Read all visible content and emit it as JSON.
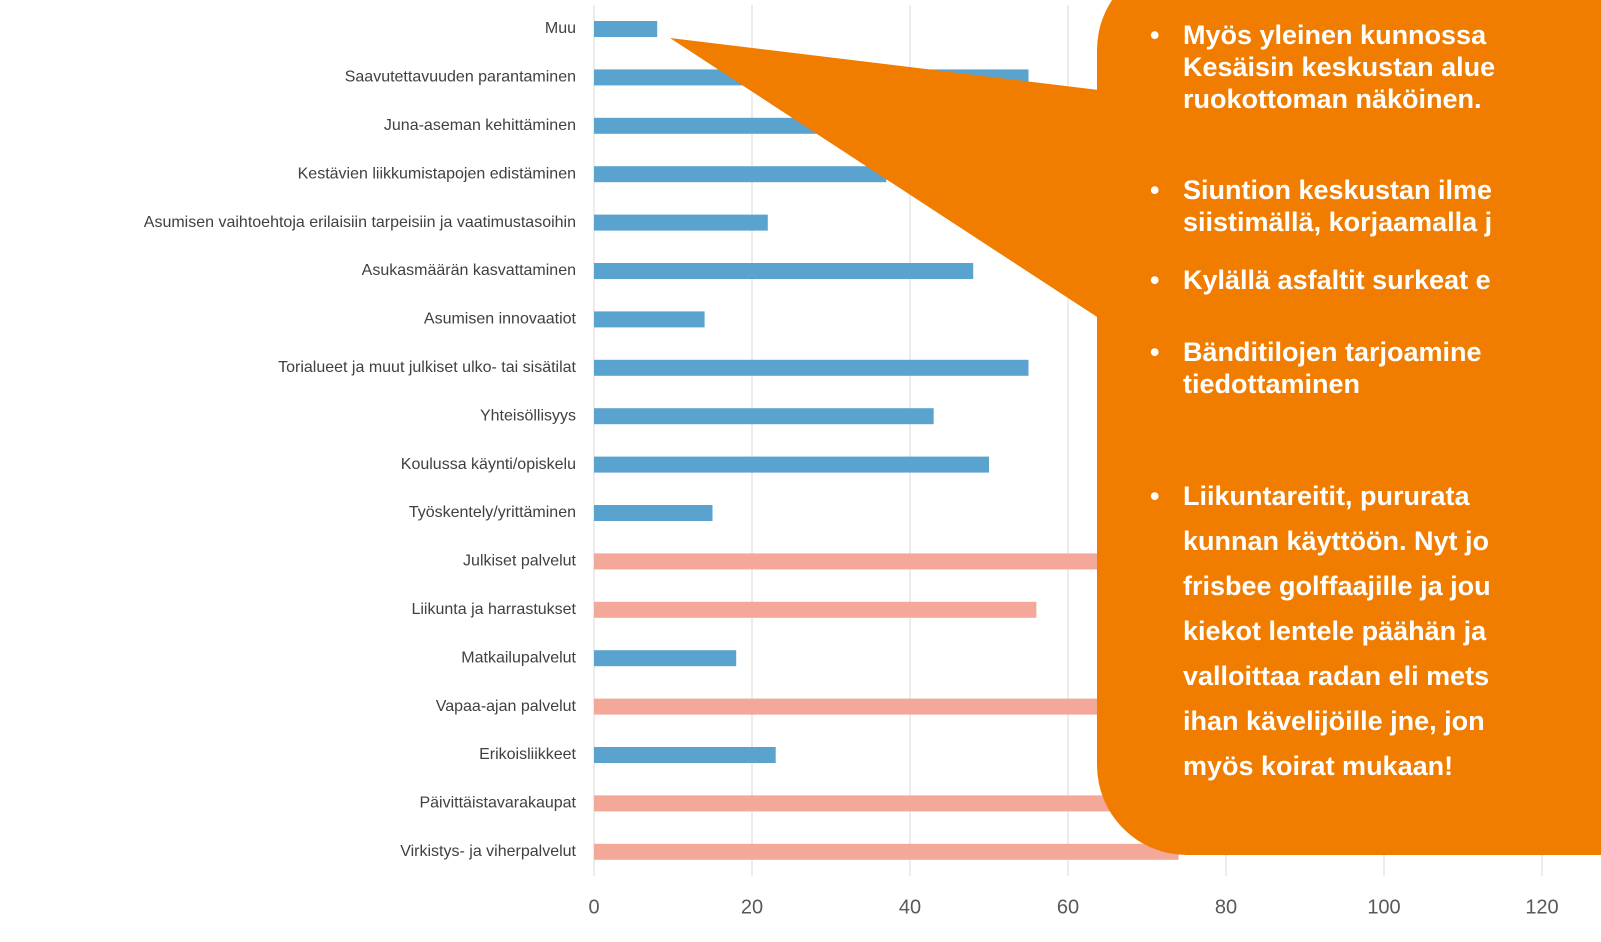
{
  "chart_data": {
    "type": "bar",
    "orientation": "horizontal",
    "categories": [
      "Muu",
      "Saavutettavuuden parantaminen",
      "Juna-aseman kehittäminen",
      "Kestävien liikkumistapojen edistäminen",
      "Asumisen vaihtoehtoja erilaisiin tarpeisiin ja vaatimustasoihin",
      "Asukasmäärän kasvattaminen",
      "Asumisen innovaatiot",
      "Torialueet ja muut julkiset ulko- tai sisätilat",
      "Yhteisöllisyys",
      "Koulussa käynti/opiskelu",
      "Työskentely/yrittäminen",
      "Julkiset palvelut",
      "Liikunta ja harrastukset",
      "Matkailupalvelut",
      "Vapaa-ajan palvelut",
      "Erikoisliikkeet",
      "Päivittäistavarakaupat",
      "Virkistys- ja viherpalvelut"
    ],
    "values": [
      8,
      55,
      50,
      37,
      22,
      48,
      14,
      55,
      43,
      50,
      15,
      85,
      56,
      18,
      75,
      23,
      90,
      74
    ],
    "colors": [
      "#5ba3cf",
      "#5ba3cf",
      "#5ba3cf",
      "#5ba3cf",
      "#5ba3cf",
      "#5ba3cf",
      "#5ba3cf",
      "#5ba3cf",
      "#5ba3cf",
      "#5ba3cf",
      "#5ba3cf",
      "#f4a89a",
      "#f4a89a",
      "#5ba3cf",
      "#f4a89a",
      "#5ba3cf",
      "#f4a89a",
      "#f4a89a"
    ],
    "xlim": [
      0,
      120
    ],
    "xticks": [
      0,
      20,
      40,
      60,
      80,
      100,
      120
    ],
    "grid": true
  },
  "callout": {
    "color": "#f07c00",
    "bullets": [
      [
        "Myös yleinen kunnossa",
        "Kesäisin keskustan alue",
        "ruokottoman näköinen."
      ],
      [
        "Siuntion keskustan ilme",
        "siistimällä, korjaamalla j"
      ],
      [
        "Kylällä asfaltit surkeat e"
      ],
      [
        "Bänditilojen tarjoamine",
        "tiedottaminen"
      ],
      [
        "Liikuntareitit, pururata",
        "kunnan käyttöön. Nyt jo",
        "frisbee golffaajille ja jou",
        "kiekot lentele päähän ja",
        "valloittaa radan eli mets",
        "ihan kävelijöille jne, jon",
        "myös koirat mukaan!"
      ]
    ]
  }
}
